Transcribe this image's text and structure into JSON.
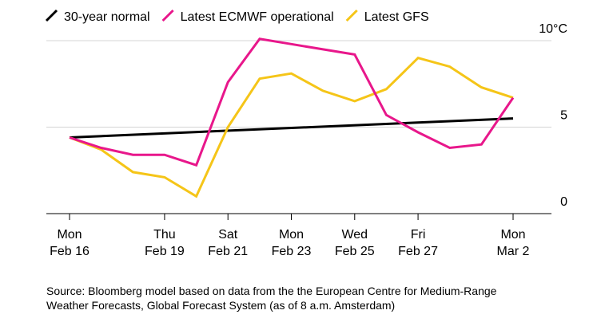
{
  "chart_data": {
    "type": "line",
    "title": "",
    "xlabel": "",
    "ylabel": "",
    "ylim": [
      0,
      10
    ],
    "y_ticks": [
      {
        "value": 10,
        "label": "10°C"
      },
      {
        "value": 5,
        "label": "5"
      },
      {
        "value": 0,
        "label": "0"
      }
    ],
    "x_range": [
      0,
      14
    ],
    "x_ticks": [
      {
        "x": 0,
        "line1": "Mon",
        "line2": "Feb 16"
      },
      {
        "x": 3,
        "line1": "Thu",
        "line2": "Feb 19"
      },
      {
        "x": 5,
        "line1": "Sat",
        "line2": "Feb 21"
      },
      {
        "x": 7,
        "line1": "Mon",
        "line2": "Feb 23"
      },
      {
        "x": 9,
        "line1": "Wed",
        "line2": "Feb 25"
      },
      {
        "x": 11,
        "line1": "Fri",
        "line2": "Feb 27"
      },
      {
        "x": 14,
        "line1": "Mon",
        "line2": "Mar 2"
      }
    ],
    "legend_position": "top-left",
    "series": [
      {
        "name": "30-year normal",
        "color": "#000000",
        "x": [
          0,
          14
        ],
        "values": [
          4.4,
          5.5
        ]
      },
      {
        "name": "Latest ECMWF operational",
        "color": "#e8178b",
        "x": [
          0,
          1,
          2,
          3,
          4,
          5,
          6,
          7,
          8,
          9,
          10,
          11,
          12,
          13,
          14
        ],
        "values": [
          4.4,
          3.8,
          3.4,
          3.4,
          2.8,
          7.6,
          10.1,
          9.8,
          9.5,
          9.2,
          5.7,
          4.7,
          3.8,
          4.0,
          6.7
        ]
      },
      {
        "name": "Latest GFS",
        "color": "#f5c518",
        "x": [
          0,
          1,
          2,
          3,
          4,
          5,
          6,
          7,
          8,
          9,
          10,
          11,
          12,
          13,
          14
        ],
        "values": [
          4.4,
          3.7,
          2.4,
          2.1,
          1.0,
          5.0,
          7.8,
          8.1,
          7.1,
          6.5,
          7.2,
          9.0,
          8.5,
          7.3,
          6.7
        ]
      }
    ],
    "source": {
      "line1": "Source: Bloomberg model based on data from the the European Centre for Medium-Range",
      "line2": "Weather Forecasts, Global Forecast System (as of 8 a.m. Amsterdam)"
    }
  }
}
